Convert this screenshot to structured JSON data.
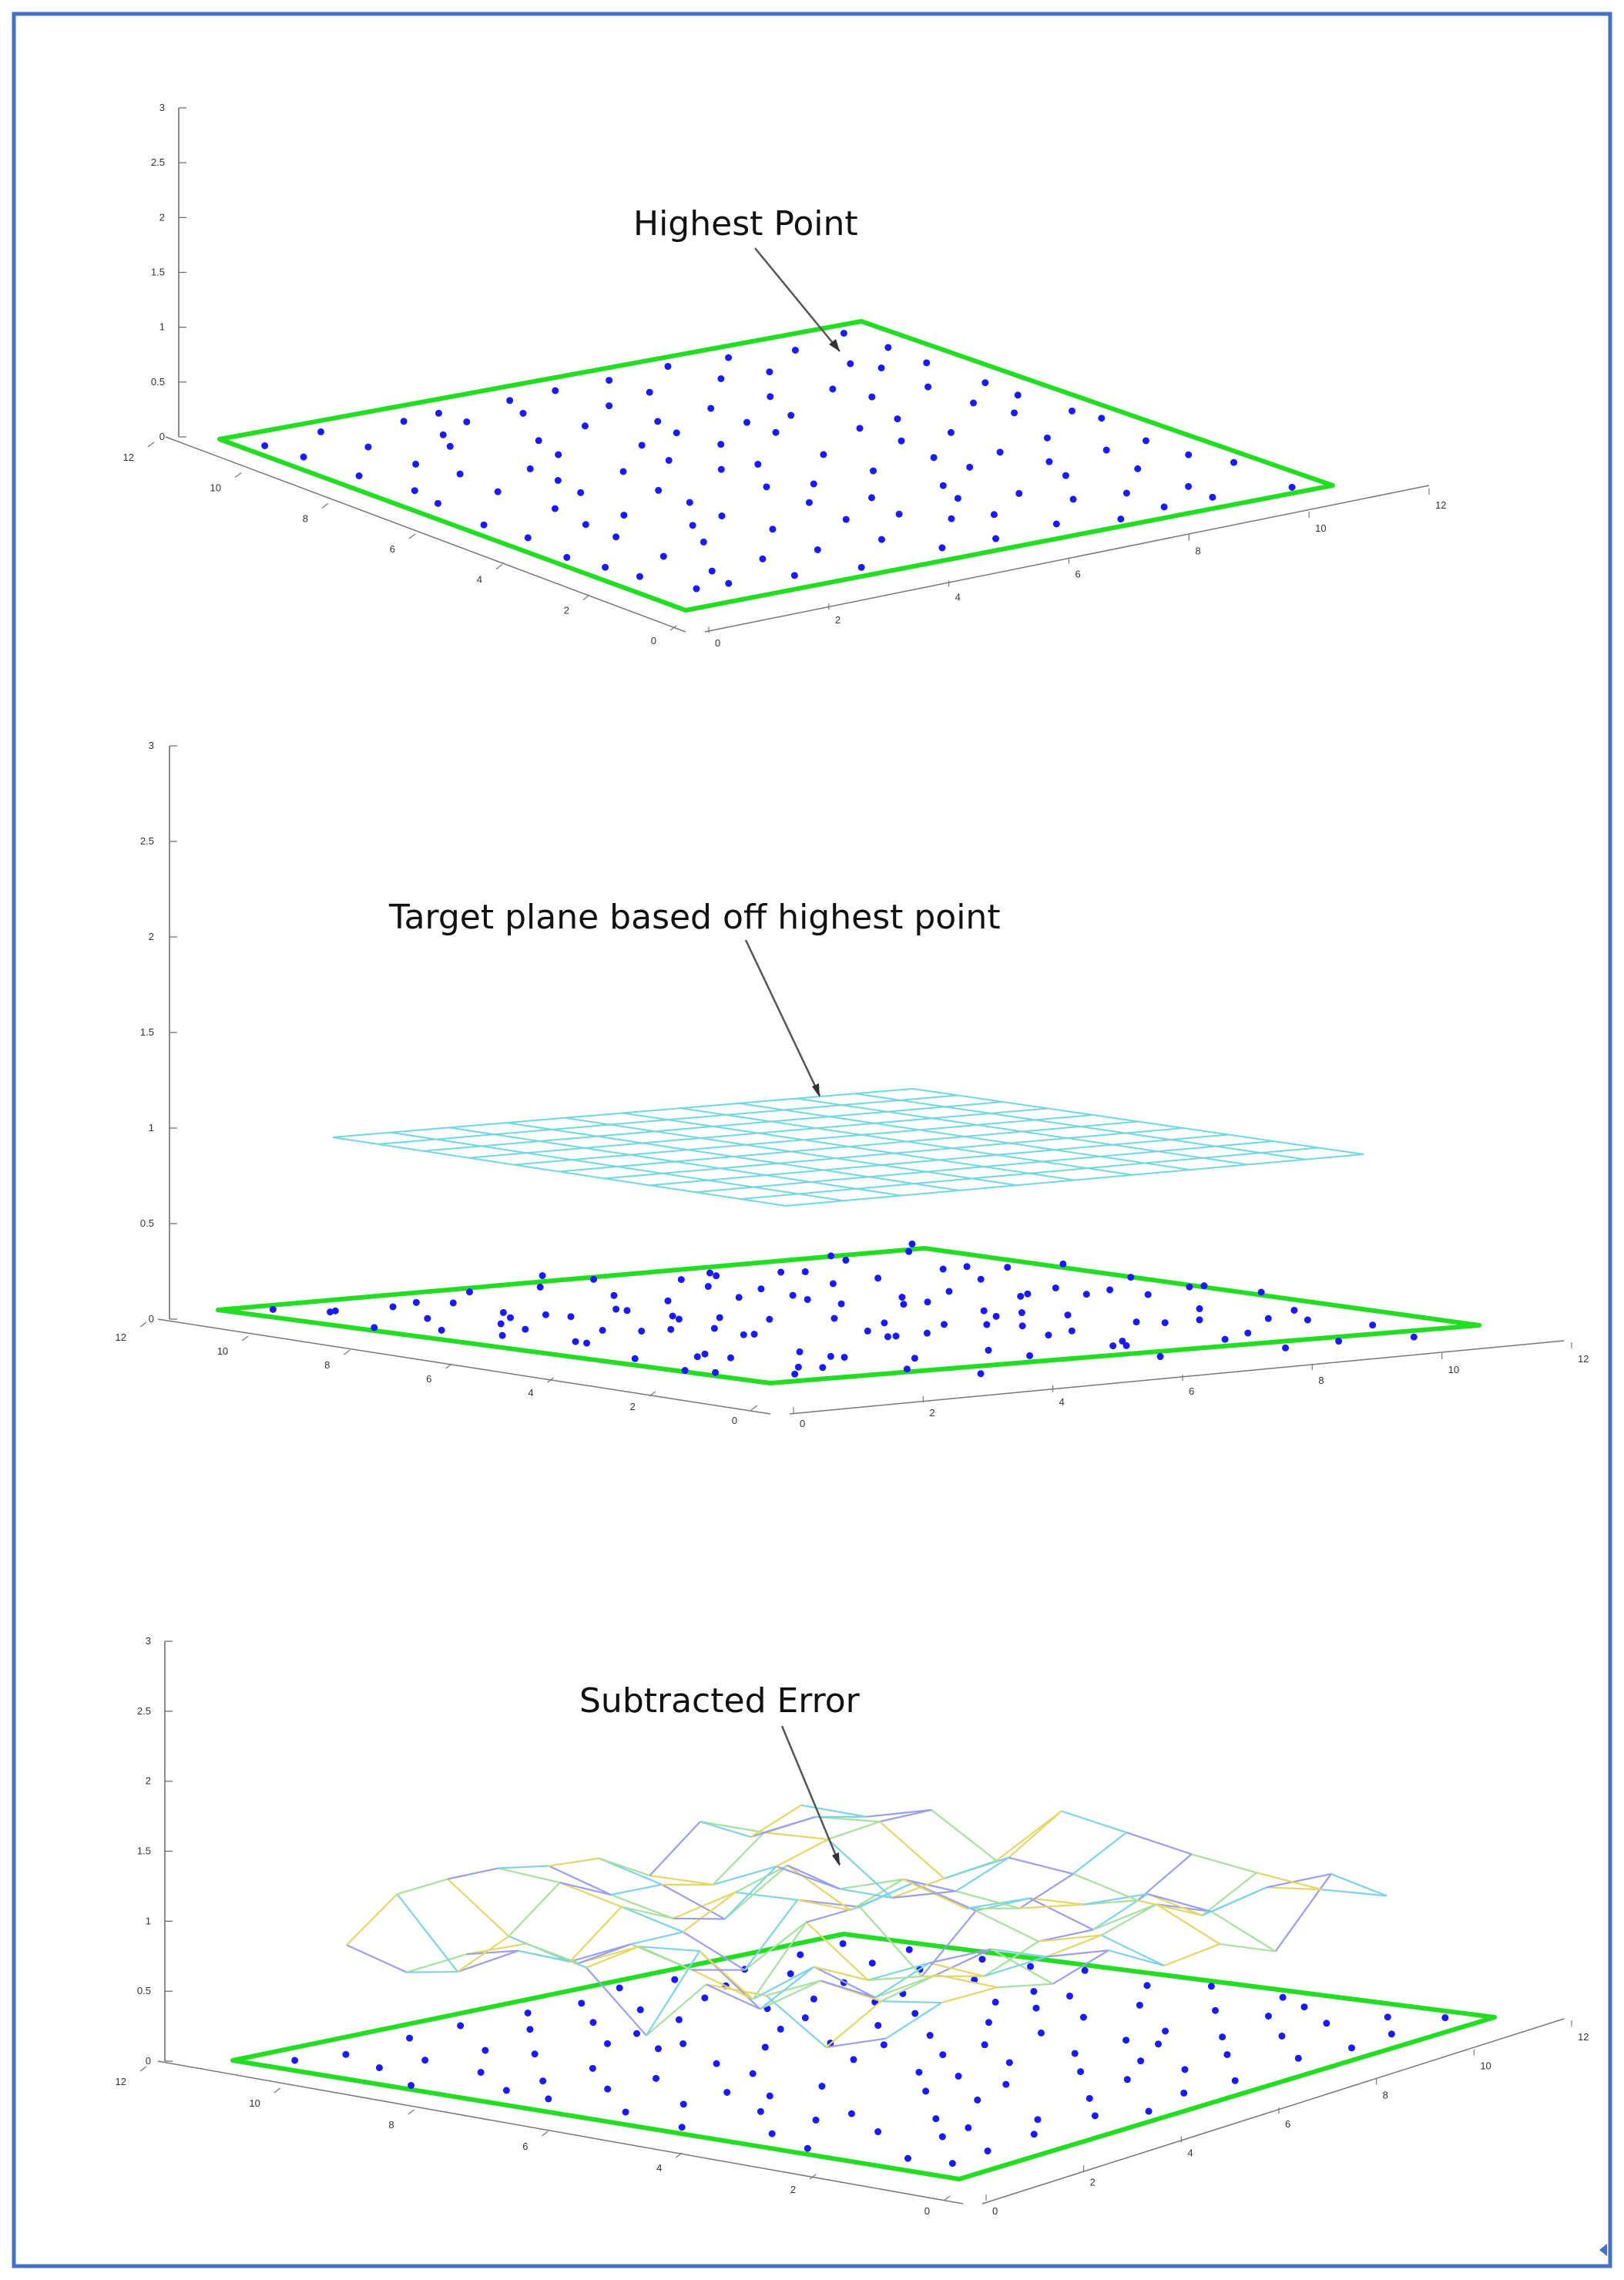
{
  "chart_data": [
    {
      "type": "scatter3d",
      "title": "",
      "annotation": "Highest Point",
      "xlim": [
        0,
        12
      ],
      "ylim": [
        0,
        12
      ],
      "zlim": [
        0,
        3
      ],
      "z_ticks": [
        "0",
        "0.5",
        "1",
        "1.5",
        "2",
        "2.5",
        "3"
      ],
      "x_ticks": [
        "0",
        "2",
        "4",
        "6",
        "8",
        "10",
        "12"
      ],
      "y_ticks": [
        "0",
        "2",
        "4",
        "6",
        "8",
        "10",
        "12"
      ],
      "base_plane_color": "#22dd22",
      "point_color": "#1a1aff",
      "highest_point": {
        "x": 10,
        "y": 10,
        "z": 0.2
      },
      "grid_n": 11
    },
    {
      "type": "scatter3d",
      "title": "",
      "annotation": "Target plane based off highest point",
      "xlim": [
        0,
        12
      ],
      "ylim": [
        0,
        12
      ],
      "zlim": [
        0,
        3
      ],
      "z_ticks": [
        "0",
        "0.5",
        "1",
        "1.5",
        "2",
        "2.5",
        "3"
      ],
      "x_ticks": [
        "0",
        "2",
        "4",
        "6",
        "8",
        "10",
        "12"
      ],
      "y_ticks": [
        "0",
        "2",
        "4",
        "6",
        "8",
        "10",
        "12"
      ],
      "base_plane_color": "#22dd22",
      "point_color": "#1a1aff",
      "target_plane_z": 1,
      "target_plane_color": "#6fd8e0",
      "grid_n": 11
    },
    {
      "type": "surface3d",
      "title": "",
      "annotation": "Subtracted Error",
      "xlim": [
        0,
        12
      ],
      "ylim": [
        0,
        12
      ],
      "zlim": [
        0,
        3
      ],
      "z_ticks": [
        "0",
        "0.5",
        "1",
        "1.5",
        "2",
        "2.5",
        "3"
      ],
      "x_ticks": [
        "0",
        "2",
        "4",
        "6",
        "8",
        "10",
        "12"
      ],
      "y_ticks": [
        "0",
        "2",
        "4",
        "6",
        "8",
        "10",
        "12"
      ],
      "base_plane_color": "#22dd22",
      "point_color": "#1a1aff",
      "error_mesh_mean_z": 1.15,
      "error_mesh_colors": [
        "#9aa0ea",
        "#7fd3e6",
        "#e6d66a",
        "#a8e0a0"
      ],
      "grid_n": 11
    }
  ],
  "border_color": "#4472c4"
}
